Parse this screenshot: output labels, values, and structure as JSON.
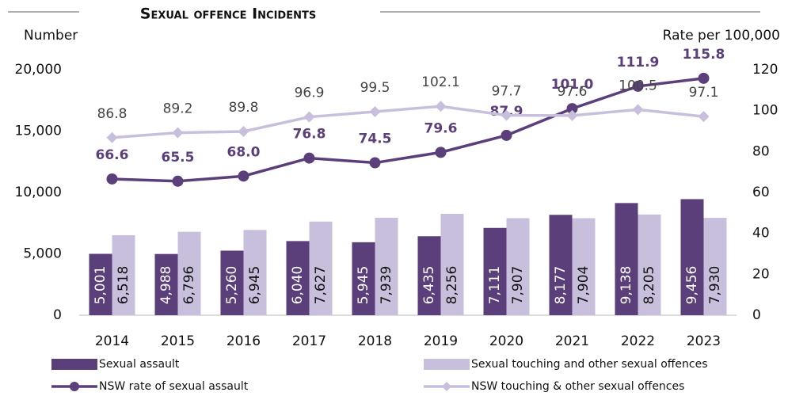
{
  "chart_data": {
    "type": "bar",
    "title": "Sexual offence Incidents",
    "y_label": "Number",
    "y2_label": "Rate per 100,000",
    "categories": [
      "2014",
      "2015",
      "2016",
      "2017",
      "2018",
      "2019",
      "2020",
      "2021",
      "2022",
      "2023"
    ],
    "series": [
      {
        "name": "Sexual assault",
        "type": "bar",
        "color": "#5b3f7a",
        "values": [
          5001,
          4988,
          5260,
          6040,
          5945,
          6435,
          7111,
          8177,
          9138,
          9456
        ],
        "value_labels": [
          "5,001",
          "4,988",
          "5,260",
          "6,040",
          "5,945",
          "6,435",
          "7,111",
          "8,177",
          "9,138",
          "9,456"
        ]
      },
      {
        "name": "Sexual touching and other sexual offences",
        "type": "bar",
        "color": "#c8bfdc",
        "values": [
          6518,
          6796,
          6945,
          7627,
          7939,
          8256,
          7907,
          7904,
          8205,
          7930
        ],
        "value_labels": [
          "6,518",
          "6,796",
          "6,945",
          "7,627",
          "7,939",
          "8,256",
          "7,907",
          "7,904",
          "8,205",
          "7,930"
        ]
      },
      {
        "name": "NSW rate of sexual assault",
        "type": "line",
        "axis": "y2",
        "color": "#5b3f7a",
        "marker": "circle",
        "values": [
          66.6,
          65.5,
          68.0,
          76.8,
          74.5,
          79.6,
          87.9,
          101.0,
          111.9,
          115.8
        ],
        "value_labels": [
          "66.6",
          "65.5",
          "68.0",
          "76.8",
          "74.5",
          "79.6",
          "87.9",
          "101.0",
          "111.9",
          "115.8"
        ]
      },
      {
        "name": "NSW touching & other sexual offences",
        "type": "line",
        "axis": "y2",
        "color": "#c8bfdc",
        "marker": "diamond",
        "values": [
          86.8,
          89.2,
          89.8,
          96.9,
          99.5,
          102.1,
          97.7,
          97.6,
          100.5,
          97.1
        ],
        "value_labels": [
          "86.8",
          "89.2",
          "89.8",
          "96.9",
          "99.5",
          "102.1",
          "97.7",
          "97.6",
          "100.5",
          "97.1"
        ]
      }
    ],
    "ylim": [
      0,
      20000
    ],
    "yticks": [
      0,
      {
        "value": 5000,
        "label": "5,000"
      },
      {
        "value": 10000,
        "label": "10,000"
      },
      {
        "value": 15000,
        "label": "15,000"
      },
      {
        "value": 20000,
        "label": "20,000"
      }
    ],
    "y2lim": [
      0,
      120
    ],
    "y2ticks": [
      0,
      20,
      40,
      60,
      80,
      100,
      120
    ],
    "grid": false
  }
}
